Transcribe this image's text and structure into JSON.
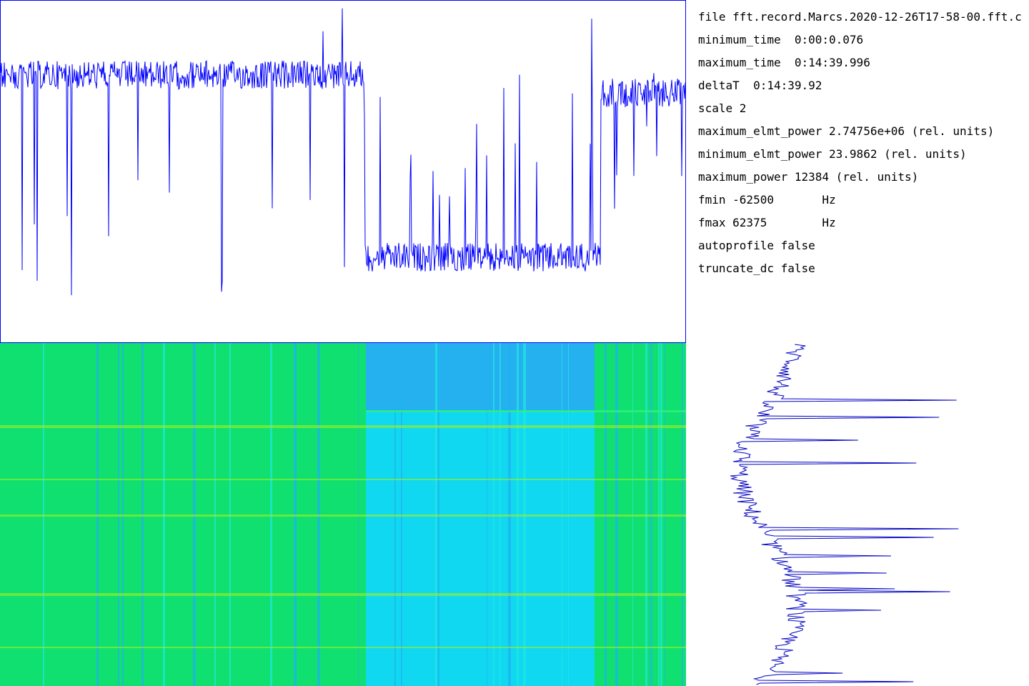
{
  "info": {
    "lines": [
      "file fft.record.Marcs.2020-12-26T17-58-00.fft.c",
      "minimum_time  0:00:0.076",
      "maximum_time  0:14:39.996",
      "deltaT  0:14:39.92",
      "scale 2",
      "maximum_elmt_power 2.74756e+06 (rel. units)",
      "minimum_elmt_power 23.9862 (rel. units)",
      "maximum_power 12384 (rel. units)",
      "fmin -62500       Hz",
      "fmax 62375        Hz",
      "autoprofile false",
      "truncate_dc false"
    ]
  }
}
